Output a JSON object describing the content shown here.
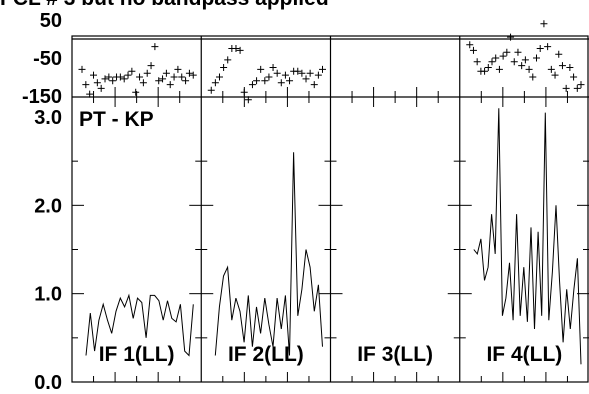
{
  "title": "FCL # 3 but no bandpass applied",
  "source_label": "PT - KP",
  "chart_data": [
    {
      "type": "scatter",
      "role": "phase",
      "ylim": [
        -150,
        50
      ],
      "y_ticks": [
        {
          "value": 50,
          "label": "50"
        },
        {
          "value": -50,
          "label": "-50"
        },
        {
          "value": -150,
          "label": "-150"
        }
      ],
      "ref_line": 0,
      "series": [
        {
          "panel": "IF 1(LL)",
          "values": [
            -80,
            -120,
            -145,
            -95,
            -115,
            -130,
            -105,
            -100,
            -110,
            -100,
            -100,
            -105,
            -95,
            -85,
            -140,
            -100,
            -115,
            -90,
            -70,
            -20,
            -110,
            -105,
            -90,
            -120,
            -100,
            -80,
            -100,
            -110,
            -90,
            -95
          ]
        },
        {
          "panel": "IF 2(LL)",
          "values": [
            -135,
            -115,
            -100,
            -75,
            -55,
            -25,
            -25,
            -30,
            -140,
            -160,
            -120,
            -110,
            -80,
            -110,
            -100,
            -75,
            -90,
            -115,
            -95,
            -110,
            -85,
            -85,
            -90,
            -105,
            -90,
            -120,
            -95,
            -80
          ]
        },
        {
          "panel": "IF 3(LL)",
          "values": []
        },
        {
          "panel": "IF 4(LL)",
          "values": [
            -15,
            -30,
            -60,
            -85,
            -85,
            -75,
            -60,
            -50,
            -80,
            -45,
            -35,
            5,
            -60,
            -35,
            -70,
            -55,
            -80,
            -100,
            -50,
            -25,
            40,
            -20,
            -80,
            -95,
            -40,
            -70,
            -130,
            -75,
            -100,
            -130,
            -120
          ]
        }
      ]
    },
    {
      "type": "line",
      "role": "amplitude",
      "ylim": [
        0,
        3
      ],
      "y_ticks": [
        {
          "value": 3,
          "label": "3.0"
        },
        {
          "value": 2,
          "label": "2.0"
        },
        {
          "value": 1,
          "label": "1.0"
        },
        {
          "value": 0,
          "label": "0.0"
        }
      ],
      "series": [
        {
          "panel": "IF 1(LL)",
          "values": [
            0.3,
            0.78,
            0.35,
            0.7,
            0.88,
            0.7,
            0.55,
            0.8,
            0.95,
            0.85,
            0.98,
            0.72,
            0.95,
            0.9,
            0.5,
            0.98,
            0.98,
            0.92,
            0.7,
            0.92,
            0.72,
            0.68,
            0.88,
            0.35,
            0.3,
            0.88
          ]
        },
        {
          "panel": "IF 2(LL)",
          "values": [
            0.3,
            0.85,
            1.2,
            1.3,
            0.7,
            0.95,
            0.8,
            0.45,
            0.98,
            0.4,
            0.85,
            0.55,
            0.95,
            0.65,
            0.4,
            0.95,
            0.6,
            0.98,
            0.3,
            2.6,
            0.75,
            1.05,
            1.5,
            1.3,
            0.8,
            1.1,
            0.4
          ]
        },
        {
          "panel": "IF 3(LL)",
          "values": []
        },
        {
          "panel": "IF 4(LL)",
          "values": [
            1.5,
            1.45,
            1.62,
            1.15,
            1.3,
            1.9,
            1.45,
            3.1,
            0.75,
            0.95,
            1.35,
            0.7,
            1.9,
            0.75,
            1.3,
            0.68,
            1.75,
            0.6,
            1.7,
            0.75,
            3.05,
            0.7,
            1.25,
            2.0,
            1.15,
            0.45,
            1.05,
            0.6,
            1.05,
            1.4,
            0.2
          ]
        }
      ]
    }
  ],
  "panels": [
    {
      "label": "IF 1(LL)"
    },
    {
      "label": "IF 2(LL)"
    },
    {
      "label": "IF 3(LL)"
    },
    {
      "label": "IF 4(LL)"
    }
  ]
}
